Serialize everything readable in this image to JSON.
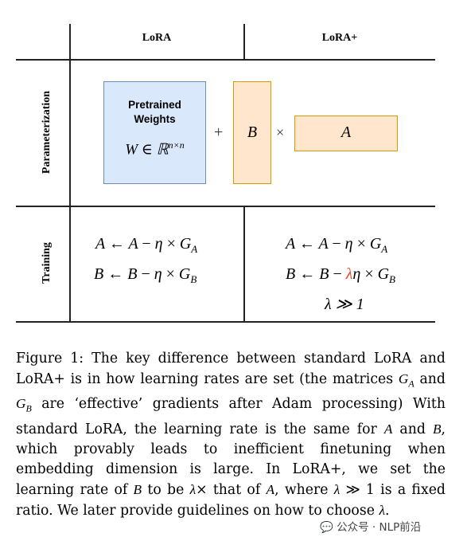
{
  "table": {
    "col_headers": [
      "LoRA",
      "LoRA+"
    ],
    "row_headers": [
      "Parameterization",
      "Training"
    ]
  },
  "diagram": {
    "pretrained_title_line1": "Pretrained",
    "pretrained_title_line2": "Weights",
    "pretrained_math_base": "W ∈ ℝ",
    "pretrained_math_sup": "n×n",
    "plus": "+",
    "times": "×",
    "B_label": "B",
    "A_label": "A",
    "fill_pretrained": "#dae8fc",
    "fill_lowrank": "#ffe6cc"
  },
  "training": {
    "lora_eq_A": "A ← A − η × G_A",
    "lora_eq_B": "B ← B − η × G_B",
    "loraplus_eq_A": "A ← A − η × G_A",
    "loraplus_eq_B": "B ← B − λη × G_B",
    "loraplus_cond": "λ ≫ 1",
    "highlight_color": "#e8452f"
  },
  "caption": {
    "label": "Figure 1:",
    "text": "The key difference between standard LoRA and LoRA+ is in how learning rates are set (the matrices G_A and G_B are ‘effective’ gradients after Adam processing) With standard LoRA, the learning rate is the same for A and B, which provably leads to inefficient finetuning when embedding dimension is large. In LoRA+, we set the learning rate of B to be λ× that of A, where λ ≫ 1 is a fixed ratio. We later provide guidelines on how to choose λ."
  },
  "watermark": "公众号 · NLP前沿"
}
